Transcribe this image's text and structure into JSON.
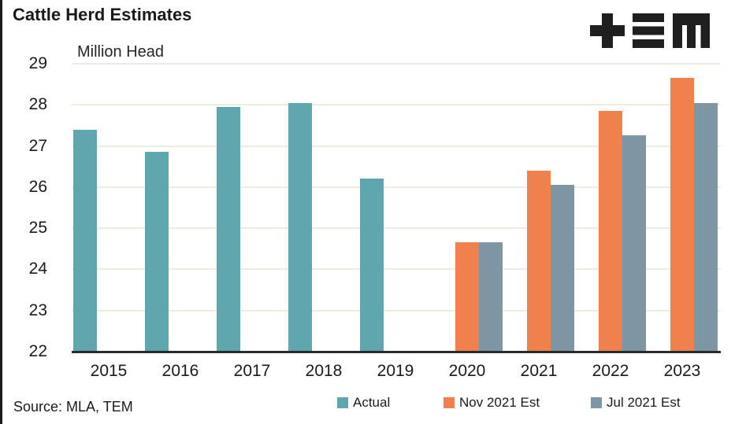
{
  "header": {
    "title": "Cattle Herd Estimates",
    "units_label": "Million Head",
    "logo_name": "TEM"
  },
  "footer": {
    "source": "Source: MLA, TEM"
  },
  "chart_data": {
    "type": "bar",
    "title": "Cattle Herd Estimates",
    "ylabel": "Million Head",
    "categories": [
      "2015",
      "2016",
      "2017",
      "2018",
      "2019",
      "2020",
      "2021",
      "2022",
      "2023"
    ],
    "series": [
      {
        "name": "Actual",
        "color": "#60A6AE",
        "values": [
          27.4,
          26.85,
          27.95,
          28.05,
          26.2,
          null,
          null,
          null,
          null
        ]
      },
      {
        "name": "Nov 2021 Est",
        "color": "#F0814C",
        "values": [
          null,
          null,
          null,
          null,
          null,
          24.65,
          26.4,
          27.85,
          28.65
        ]
      },
      {
        "name": "Jul 2021 Est",
        "color": "#7E96A3",
        "values": [
          null,
          null,
          null,
          null,
          null,
          24.65,
          26.05,
          27.25,
          28.05
        ]
      }
    ],
    "ylim": [
      22,
      29
    ],
    "yticks": [
      22,
      23,
      24,
      25,
      26,
      27,
      28,
      29
    ],
    "grid": true,
    "legend_position": "bottom"
  },
  "colors": {
    "grid": "#EDECE1",
    "axis": "#2B2B2B",
    "text": "#1A1A1A",
    "logo": "#1F1F1F",
    "border": "#1A1A1A",
    "background": "#FFFFFF"
  }
}
